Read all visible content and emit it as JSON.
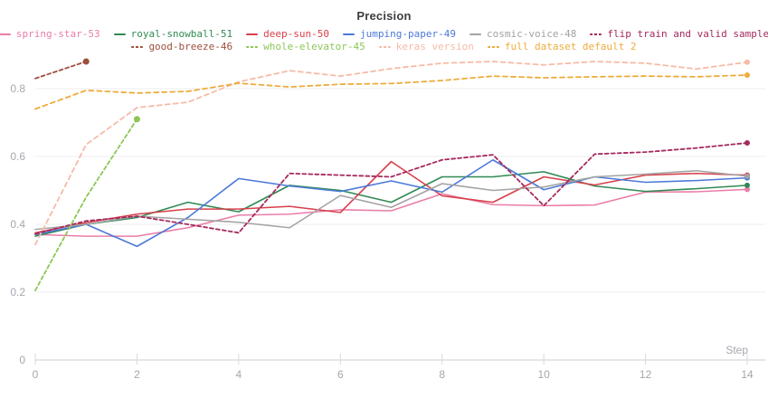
{
  "panel": {
    "title": "Precision"
  },
  "axes": {
    "x_label": "Step",
    "x_tick_labels": [
      "0",
      "2",
      "4",
      "6",
      "8",
      "10",
      "12",
      "14"
    ],
    "y_tick_labels": [
      "0",
      "0.2",
      "0.4",
      "0.6",
      "0.8"
    ]
  },
  "legend": {
    "rows": [
      6,
      4
    ]
  },
  "chart_data": {
    "type": "line",
    "title": "Precision",
    "xlabel": "Step",
    "ylabel": "",
    "xlim": [
      0,
      14
    ],
    "ylim": [
      0,
      0.9
    ],
    "x_ticks": [
      0,
      2,
      4,
      6,
      8,
      10,
      12,
      14
    ],
    "y_ticks": [
      0,
      0.2,
      0.4,
      0.6,
      0.8
    ],
    "grid": true,
    "legend_position": "top",
    "series": [
      {
        "name": "spring-star-53",
        "color": "#ea7da8",
        "line_style": "solid",
        "x": [
          0,
          1,
          2,
          3,
          4,
          5,
          6,
          7,
          8,
          9,
          10,
          11,
          12,
          13,
          14
        ],
        "y": [
          0.37,
          0.365,
          0.365,
          0.39,
          0.427,
          0.43,
          0.443,
          0.44,
          0.49,
          0.458,
          0.455,
          0.457,
          0.495,
          0.496,
          0.503
        ]
      },
      {
        "name": "royal-snowball-51",
        "color": "#318a55",
        "line_style": "solid",
        "x": [
          0,
          1,
          2,
          3,
          4,
          5,
          6,
          7,
          8,
          9,
          10,
          11,
          12,
          13,
          14
        ],
        "y": [
          0.365,
          0.4,
          0.42,
          0.465,
          0.437,
          0.515,
          0.5,
          0.465,
          0.54,
          0.54,
          0.555,
          0.513,
          0.497,
          0.505,
          0.515
        ]
      },
      {
        "name": "deep-sun-50",
        "color": "#d7404b",
        "line_style": "solid",
        "x": [
          0,
          1,
          2,
          3,
          4,
          5,
          6,
          7,
          8,
          9,
          10,
          11,
          12,
          13,
          14
        ],
        "y": [
          0.375,
          0.405,
          0.43,
          0.445,
          0.445,
          0.453,
          0.435,
          0.585,
          0.484,
          0.465,
          0.54,
          0.516,
          0.545,
          0.55,
          0.545
        ]
      },
      {
        "name": "jumping-paper-49",
        "color": "#4b79d8",
        "line_style": "solid",
        "x": [
          0,
          1,
          2,
          3,
          4,
          5,
          6,
          7,
          8,
          9,
          10,
          11,
          12,
          13,
          14
        ],
        "y": [
          0.37,
          0.4,
          0.335,
          0.42,
          0.535,
          0.513,
          0.497,
          0.528,
          0.495,
          0.59,
          0.502,
          0.54,
          0.524,
          0.529,
          0.537
        ]
      },
      {
        "name": "cosmic-voice-48",
        "color": "#a3a3a3",
        "line_style": "solid",
        "x": [
          0,
          1,
          2,
          3,
          4,
          5,
          6,
          7,
          8,
          9,
          10,
          11,
          12,
          13,
          14
        ],
        "y": [
          0.385,
          0.4,
          0.424,
          0.415,
          0.406,
          0.39,
          0.485,
          0.45,
          0.52,
          0.5,
          0.51,
          0.54,
          0.548,
          0.558,
          0.542
        ]
      },
      {
        "name": "flip train and valid sample",
        "color": "#a62a5e",
        "line_style": "dashed",
        "dash": "4 3",
        "x": [
          0,
          1,
          2,
          3,
          4,
          5,
          6,
          7,
          8,
          9,
          10,
          11,
          12,
          13,
          14
        ],
        "y": [
          0.372,
          0.41,
          0.424,
          0.4,
          0.375,
          0.55,
          0.545,
          0.54,
          0.59,
          0.605,
          0.455,
          0.607,
          0.613,
          0.625,
          0.64
        ]
      },
      {
        "name": "good-breeze-46",
        "color": "#9e4f3c",
        "line_style": "dashed",
        "dash": "4 3",
        "end_dot": 3.5,
        "x": [
          0,
          1
        ],
        "y": [
          0.83,
          0.88
        ]
      },
      {
        "name": "whole-elevator-45",
        "color": "#8cc656",
        "line_style": "dashed",
        "dash": "4 3",
        "end_dot": 3.5,
        "x": [
          0,
          1,
          2
        ],
        "y": [
          0.205,
          0.48,
          0.71
        ]
      },
      {
        "name": "keras version",
        "color": "#f6bba8",
        "line_style": "dashed",
        "dash": "5 4",
        "x": [
          0,
          1,
          2,
          3,
          4,
          5,
          6,
          7,
          8,
          9,
          10,
          11,
          12,
          13,
          14
        ],
        "y": [
          0.34,
          0.635,
          0.744,
          0.76,
          0.82,
          0.853,
          0.837,
          0.859,
          0.875,
          0.88,
          0.87,
          0.88,
          0.875,
          0.858,
          0.878
        ]
      },
      {
        "name": "full dataset default 2",
        "color": "#eeab3c",
        "line_style": "dashed",
        "dash": "5 4",
        "x": [
          0,
          1,
          2,
          3,
          4,
          5,
          6,
          7,
          8,
          9,
          10,
          11,
          12,
          13,
          14
        ],
        "y": [
          0.74,
          0.795,
          0.787,
          0.792,
          0.816,
          0.805,
          0.813,
          0.815,
          0.824,
          0.837,
          0.832,
          0.835,
          0.837,
          0.835,
          0.84
        ]
      }
    ]
  }
}
